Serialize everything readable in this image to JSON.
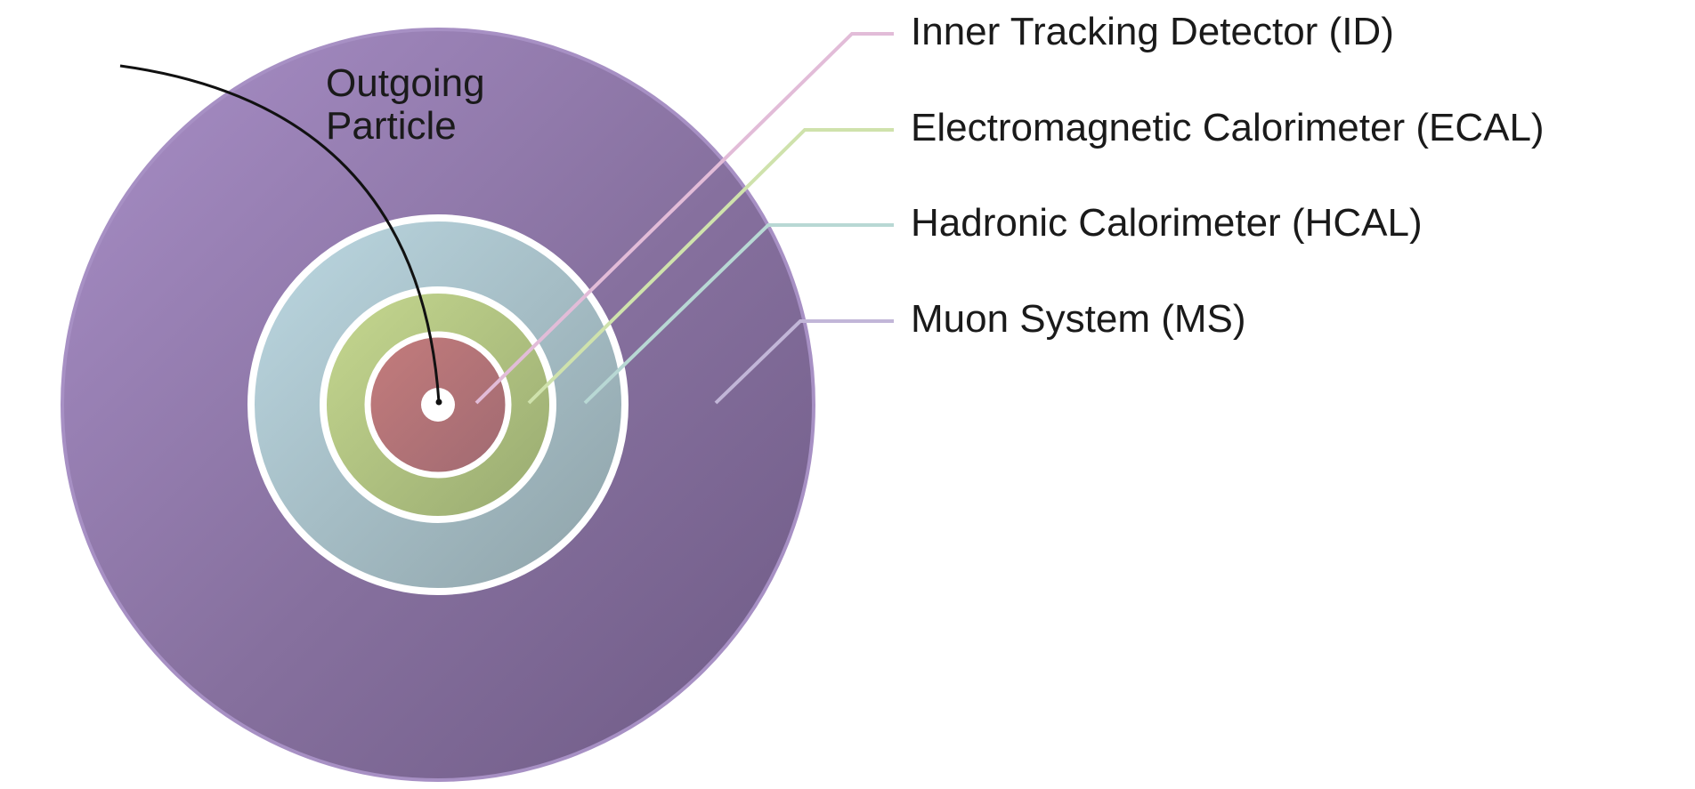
{
  "particle": {
    "label_line1": "Outgoing",
    "label_line2": "Particle"
  },
  "layers": [
    {
      "key": "id",
      "label": "Inner Tracking Detector (ID)",
      "color": "#b06f72",
      "line_color": "#e2bcd8"
    },
    {
      "key": "ecal",
      "label": "Electromagnetic Calorimeter (ECAL)",
      "color": "#a8bb78",
      "line_color": "#cfe2ac"
    },
    {
      "key": "hcal",
      "label": "Hadronic Calorimeter (HCAL)",
      "color": "#a4bec6",
      "line_color": "#b8d8d4"
    },
    {
      "key": "ms",
      "label": "Muon System (MS)",
      "color": "#8c74a6",
      "line_color": "#c2b6d8"
    }
  ]
}
